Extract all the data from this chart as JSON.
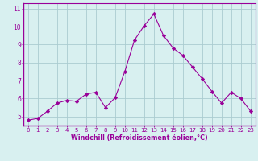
{
  "x": [
    0,
    1,
    2,
    3,
    4,
    5,
    6,
    7,
    8,
    9,
    10,
    11,
    12,
    13,
    14,
    15,
    16,
    17,
    18,
    19,
    20,
    21,
    22,
    23
  ],
  "y": [
    4.8,
    4.9,
    5.3,
    5.75,
    5.9,
    5.85,
    6.25,
    6.35,
    5.5,
    6.05,
    7.5,
    9.25,
    10.05,
    10.7,
    9.5,
    8.8,
    8.4,
    7.75,
    7.1,
    6.4,
    5.75,
    6.35,
    6.0,
    5.3
  ],
  "line_color": "#990099",
  "marker": "D",
  "marker_size": 2.2,
  "bg_color": "#d8f0f0",
  "grid_color": "#aaccd0",
  "xlabel": "Windchill (Refroidissement éolien,°C)",
  "xlabel_color": "#990099",
  "tick_color": "#990099",
  "spine_color": "#990099",
  "ylabel_ticks": [
    5,
    6,
    7,
    8,
    9,
    10,
    11
  ],
  "xlim": [
    -0.5,
    23.5
  ],
  "ylim": [
    4.5,
    11.3
  ]
}
